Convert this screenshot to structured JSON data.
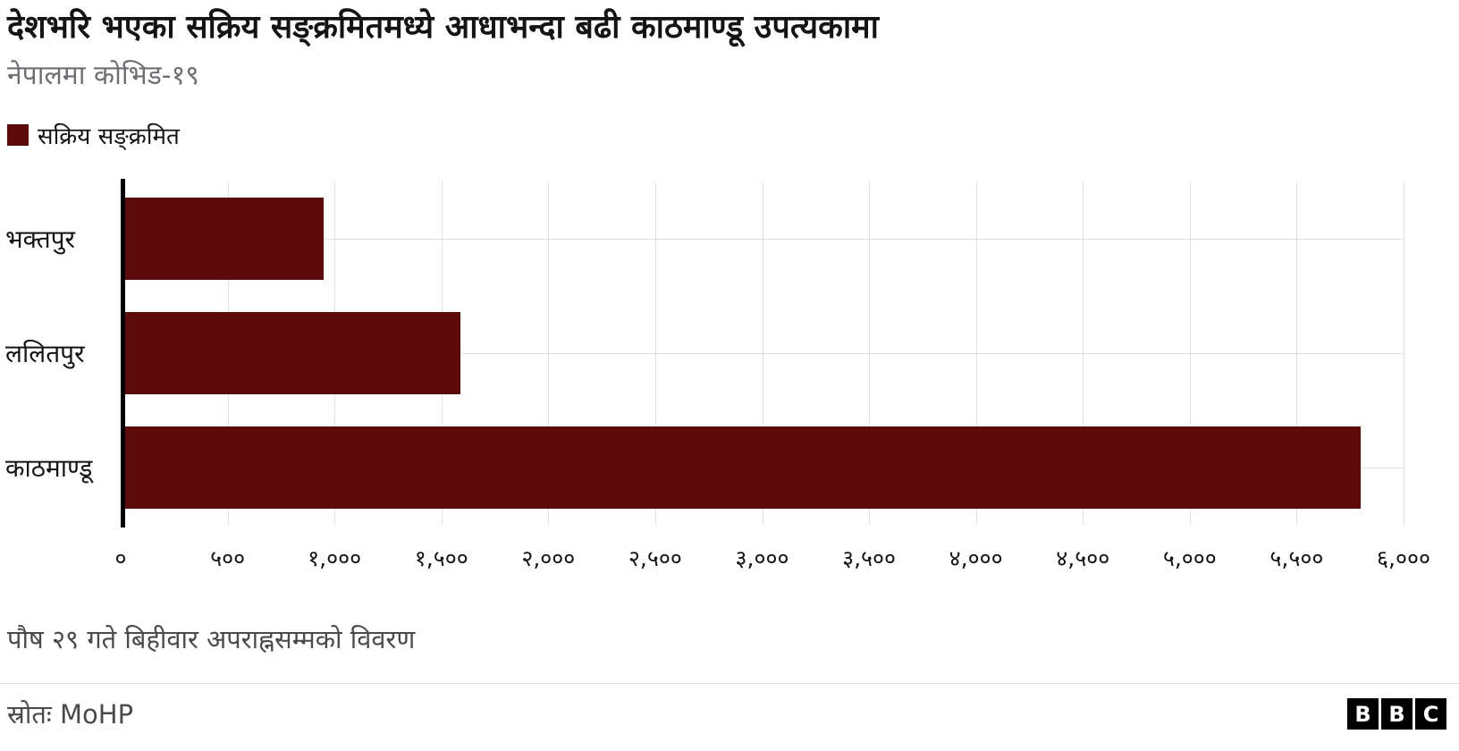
{
  "title": "देशभरि भएका सक्रिय सङ्क्रमितमध्ये आधाभन्दा बढी काठमाण्डू उपत्यकामा",
  "subtitle": "नेपालमा कोभिड-१९",
  "legend": {
    "label": "सक्रिय सङ्क्रमित"
  },
  "chart_data": {
    "type": "bar",
    "orientation": "horizontal",
    "title": "देशभरि भएका सक्रिय सङ्क्रमितमध्ये आधाभन्दा बढी काठमाण्डू उपत्यकामा",
    "subtitle": "नेपालमा कोभिड-१९",
    "series_name": "सक्रिय सङ्क्रमित",
    "categories": [
      "भक्तपुर",
      "ललितपुर",
      "काठमाण्डू"
    ],
    "values": [
      950,
      1590,
      5800
    ],
    "xlim": [
      0,
      6000
    ],
    "tick_step": 500,
    "tick_labels": [
      "०",
      "५००",
      "१,०००",
      "१,५००",
      "२,०००",
      "२,५००",
      "३,०००",
      "३,५००",
      "४,०००",
      "४,५००",
      "५,०००",
      "५,५००",
      "६,०००"
    ],
    "grid": "vertical",
    "legend_position": "top-left"
  },
  "footnote": "पौष २९ गते बिहीवार अपराह्नसम्मको विवरण",
  "source": "स्रोतः  MoHP",
  "logo": {
    "letters": [
      "B",
      "B",
      "C"
    ]
  },
  "colors": {
    "bar": "#5c0a0a",
    "grid": "#e1e1e1",
    "axis": "#000000",
    "title_text": "#141414",
    "subtitle_text": "#6e6e73",
    "footnote_text": "#4a4a4a"
  }
}
